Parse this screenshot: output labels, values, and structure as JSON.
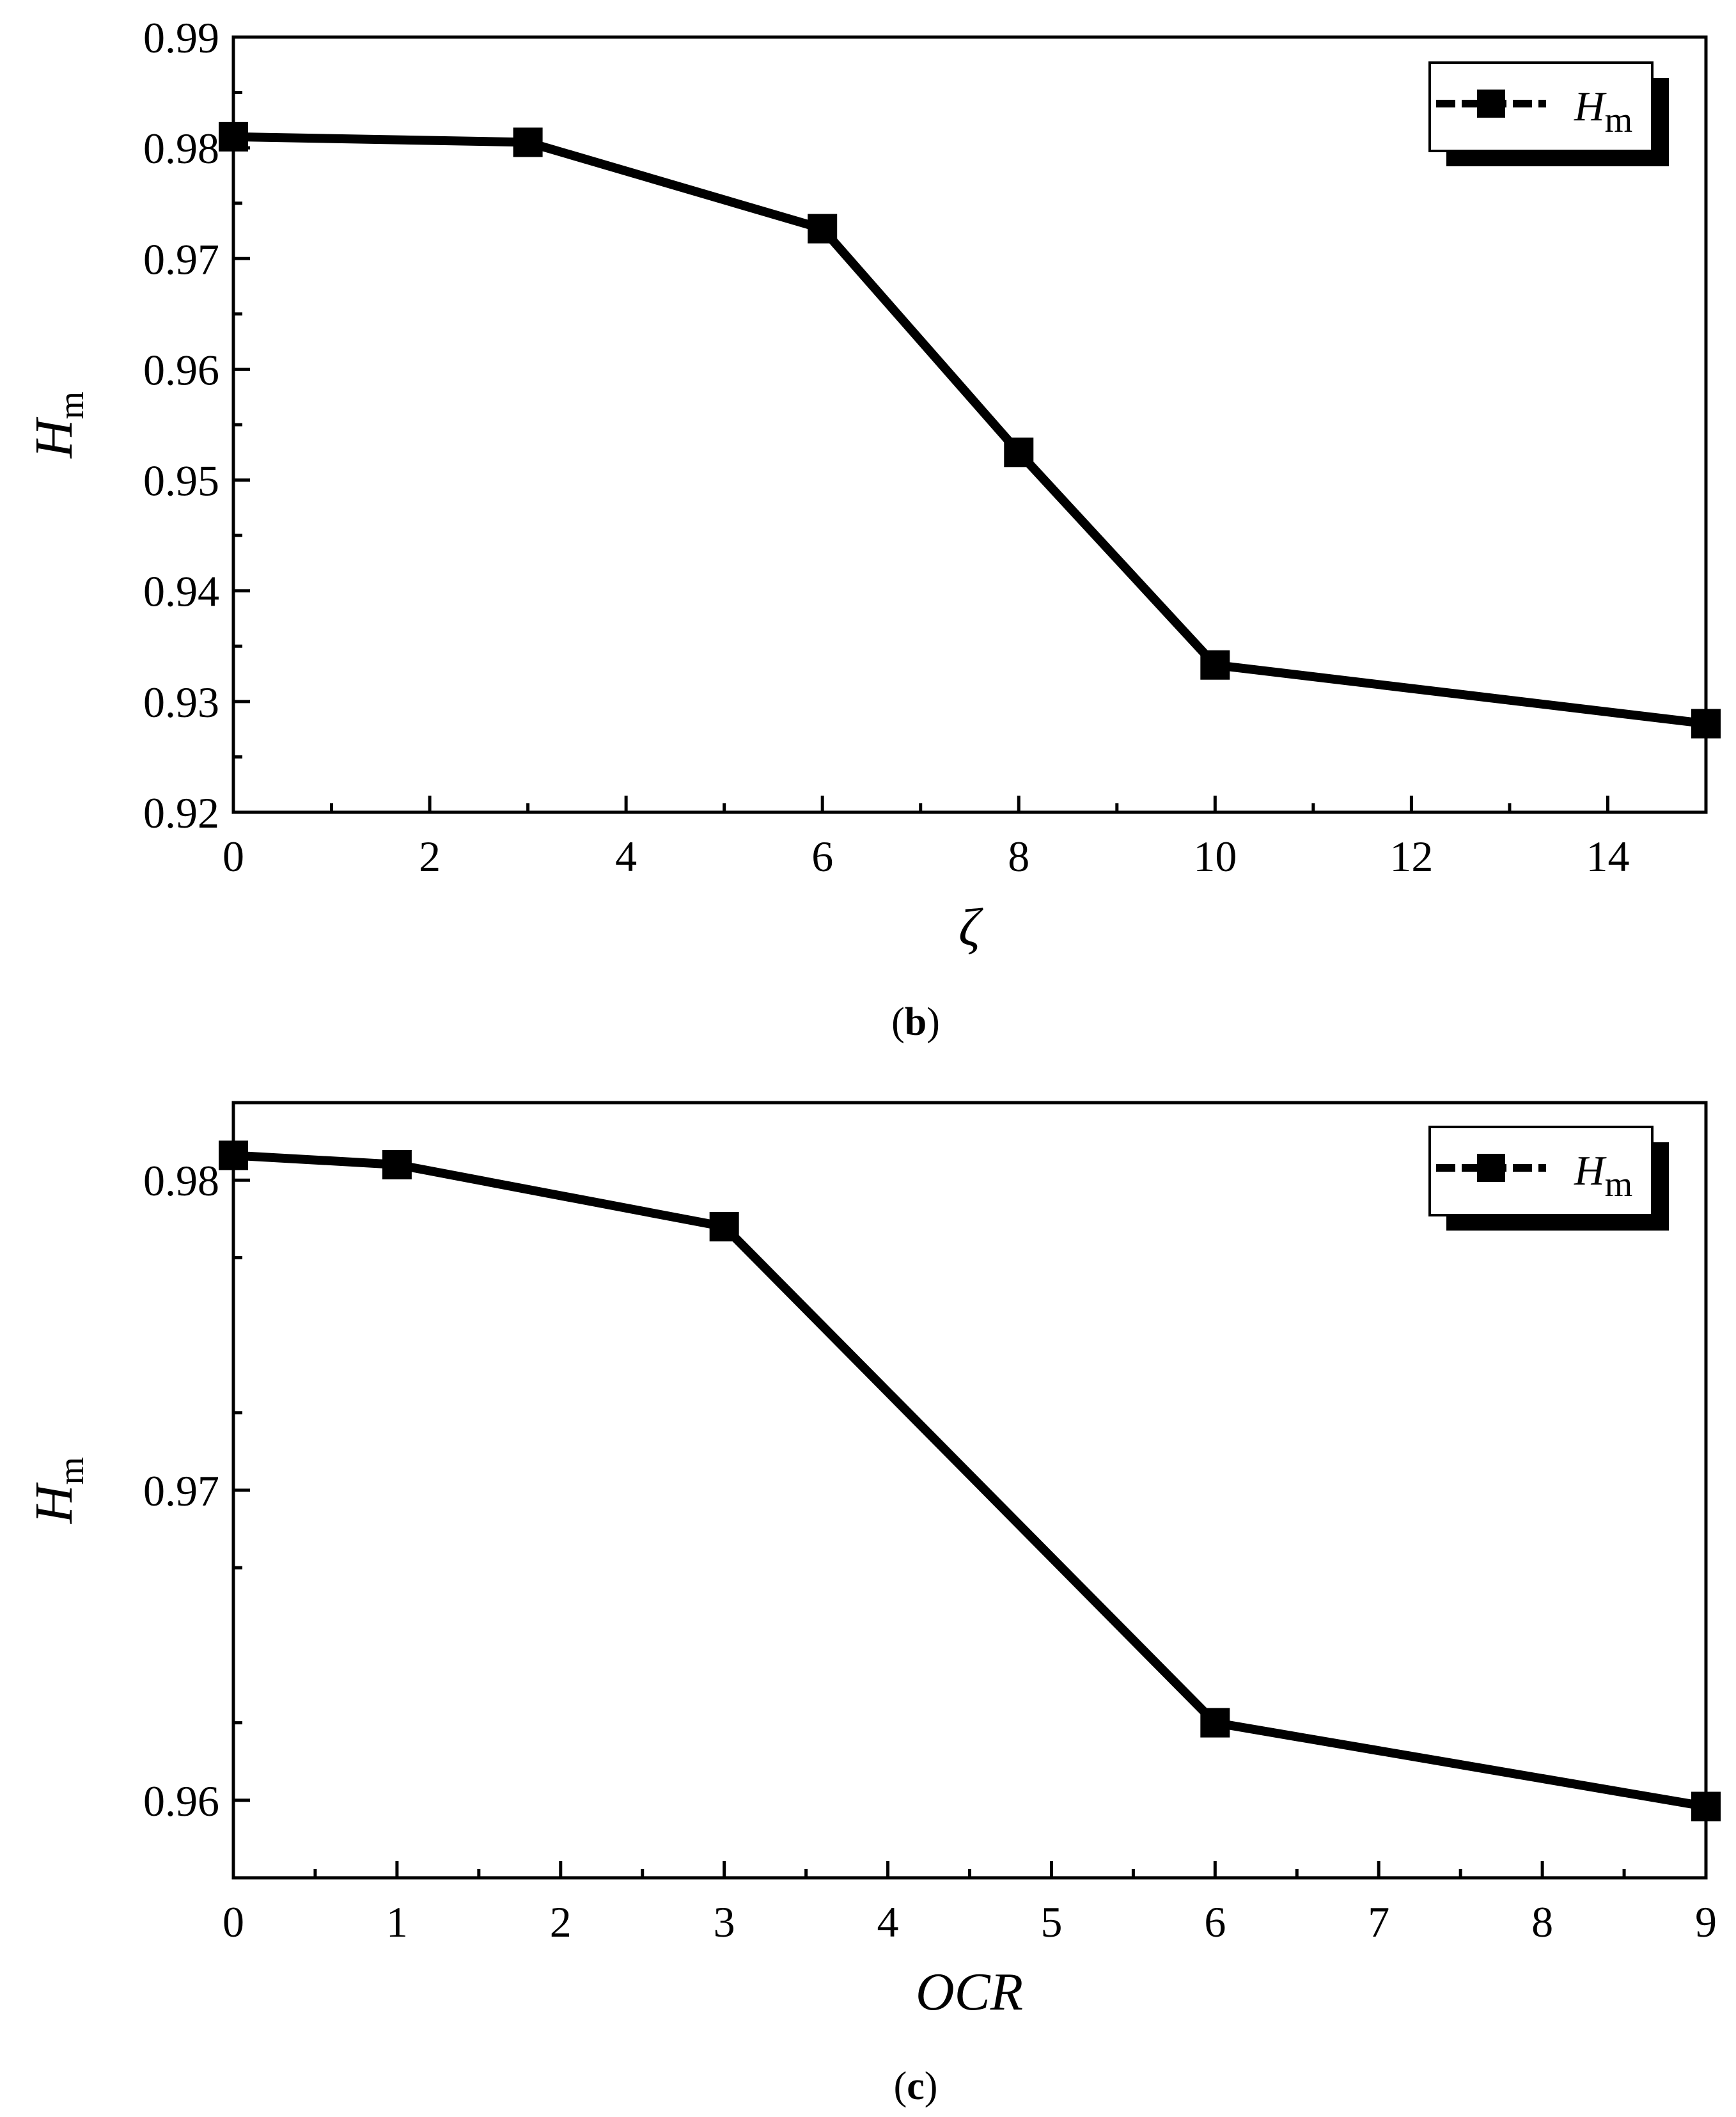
{
  "chart_data": [
    {
      "type": "line",
      "panel_label": "b",
      "xlabel": "ζ",
      "ylabel_main": "H",
      "ylabel_sub": "m",
      "xlim": [
        0,
        15
      ],
      "ylim": [
        0.92,
        0.99
      ],
      "x_ticks": [
        0,
        2,
        4,
        6,
        8,
        10,
        12,
        14
      ],
      "x_tick_labels": [
        "0",
        "2",
        "4",
        "6",
        "8",
        "10",
        "12",
        "14"
      ],
      "y_ticks": [
        0.92,
        0.93,
        0.94,
        0.95,
        0.96,
        0.97,
        0.98,
        0.99
      ],
      "y_tick_labels": [
        "0.92",
        "0.93",
        "0.94",
        "0.95",
        "0.96",
        "0.97",
        "0.98",
        "0.99"
      ],
      "legend": {
        "position": "top-right",
        "label_main": "H",
        "label_sub": "m"
      },
      "series": [
        {
          "name": "Hm",
          "x": [
            0,
            3,
            6,
            8,
            10,
            15
          ],
          "y": [
            0.981,
            0.9805,
            0.9727,
            0.9525,
            0.9333,
            0.928
          ]
        }
      ]
    },
    {
      "type": "line",
      "panel_label": "c",
      "xlabel": "OCR",
      "ylabel_main": "H",
      "ylabel_sub": "m",
      "xlim": [
        0,
        9
      ],
      "ylim": [
        0.9575,
        0.9825
      ],
      "x_ticks": [
        0,
        1,
        2,
        3,
        4,
        5,
        6,
        7,
        8,
        9
      ],
      "x_tick_labels": [
        "0",
        "1",
        "2",
        "3",
        "4",
        "5",
        "6",
        "7",
        "8",
        "9"
      ],
      "y_ticks": [
        0.96,
        0.97,
        0.98
      ],
      "y_tick_labels": [
        "0.96",
        "0.97",
        "0.98"
      ],
      "legend": {
        "position": "top-right",
        "label_main": "H",
        "label_sub": "m"
      },
      "series": [
        {
          "name": "Hm",
          "x": [
            0,
            1,
            3,
            6,
            9
          ],
          "y": [
            0.9808,
            0.9805,
            0.9785,
            0.9625,
            0.9598
          ]
        }
      ]
    }
  ]
}
